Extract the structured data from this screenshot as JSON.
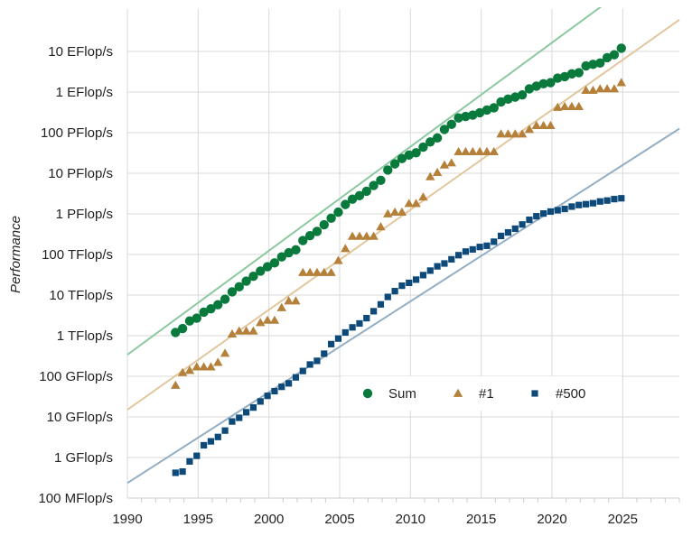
{
  "chart_data": {
    "type": "scatter",
    "title": "",
    "xlabel": "",
    "ylabel": "Performance",
    "y_scale": "log",
    "grid": true,
    "legend_position": "bottom-right",
    "xlim": [
      1990,
      2029
    ],
    "ylim_flops": [
      100000000.0,
      1e+20
    ],
    "x_ticks": [
      {
        "value": 1990,
        "label": "1990"
      },
      {
        "value": 1995,
        "label": "1995"
      },
      {
        "value": 2000,
        "label": "2000"
      },
      {
        "value": 2005,
        "label": "2005"
      },
      {
        "value": 2010,
        "label": "2010"
      },
      {
        "value": 2015,
        "label": "2015"
      },
      {
        "value": 2020,
        "label": "2020"
      },
      {
        "value": 2025,
        "label": "2025"
      }
    ],
    "y_ticks": [
      {
        "value": 1e+19,
        "label": "10 EFlop/s"
      },
      {
        "value": 1e+18,
        "label": "1 EFlop/s"
      },
      {
        "value": 1e+17,
        "label": "100 PFlop/s"
      },
      {
        "value": 1e+16,
        "label": "10 PFlop/s"
      },
      {
        "value": 1000000000000000.0,
        "label": "1 PFlop/s"
      },
      {
        "value": 100000000000000.0,
        "label": "100 TFlop/s"
      },
      {
        "value": 10000000000000.0,
        "label": "10 TFlop/s"
      },
      {
        "value": 1000000000000.0,
        "label": "1 TFlop/s"
      },
      {
        "value": 100000000000.0,
        "label": "100 GFlop/s"
      },
      {
        "value": 10000000000.0,
        "label": "10 GFlop/s"
      },
      {
        "value": 1000000000.0,
        "label": "1 GFlop/s"
      },
      {
        "value": 100000000.0,
        "label": "100 MFlop/s"
      }
    ],
    "series": [
      {
        "name": "Sum",
        "marker": "circle",
        "color": "#0a7a3c",
        "trend_color": "#8cc9a0",
        "points": [
          [
            1993.4,
            1200000000000.0
          ],
          [
            1993.9,
            1500000000000.0
          ],
          [
            1994.4,
            2300000000000.0
          ],
          [
            1994.9,
            2700000000000.0
          ],
          [
            1995.4,
            3800000000000.0
          ],
          [
            1995.9,
            4600000000000.0
          ],
          [
            1996.4,
            5800000000000.0
          ],
          [
            1996.9,
            7900000000000.0
          ],
          [
            1997.4,
            12000000000000.0
          ],
          [
            1997.9,
            16000000000000.0
          ],
          [
            1998.4,
            22000000000000.0
          ],
          [
            1998.9,
            29000000000000.0
          ],
          [
            1999.4,
            39000000000000.0
          ],
          [
            1999.9,
            50000000000000.0
          ],
          [
            2000.4,
            62000000000000.0
          ],
          [
            2000.9,
            87000000000000.0
          ],
          [
            2001.4,
            110000000000000.0
          ],
          [
            2001.9,
            130000000000000.0
          ],
          [
            2002.4,
            220000000000000.0
          ],
          [
            2002.9,
            290000000000000.0
          ],
          [
            2003.4,
            370000000000000.0
          ],
          [
            2003.9,
            540000000000000.0
          ],
          [
            2004.4,
            780000000000000.0
          ],
          [
            2004.9,
            1100000000000000.0
          ],
          [
            2005.4,
            1700000000000000.0
          ],
          [
            2005.9,
            2300000000000000.0
          ],
          [
            2006.4,
            2800000000000000.0
          ],
          [
            2006.9,
            3600000000000000.0
          ],
          [
            2007.4,
            5000000000000000.0
          ],
          [
            2007.9,
            6700000000000000.0
          ],
          [
            2008.4,
            1.2e+16
          ],
          [
            2008.9,
            1.7e+16
          ],
          [
            2009.4,
            2.3e+16
          ],
          [
            2009.9,
            2.8e+16
          ],
          [
            2010.4,
            3.2e+16
          ],
          [
            2010.9,
            4.4e+16
          ],
          [
            2011.4,
            5.9e+16
          ],
          [
            2011.9,
            7.4e+16
          ],
          [
            2012.4,
            1.2e+17
          ],
          [
            2012.9,
            1.6e+17
          ],
          [
            2013.4,
            2.3e+17
          ],
          [
            2013.9,
            2.5e+17
          ],
          [
            2014.4,
            2.7e+17
          ],
          [
            2014.9,
            3.1e+17
          ],
          [
            2015.4,
            3.6e+17
          ],
          [
            2015.9,
            4.1e+17
          ],
          [
            2016.4,
            5.7e+17
          ],
          [
            2016.9,
            6.7e+17
          ],
          [
            2017.4,
            7.5e+17
          ],
          [
            2017.9,
            8.5e+17
          ],
          [
            2018.4,
            1.2e+18
          ],
          [
            2018.9,
            1.4e+18
          ],
          [
            2019.4,
            1.6e+18
          ],
          [
            2019.9,
            1.7e+18
          ],
          [
            2020.4,
            2.2e+18
          ],
          [
            2020.9,
            2.4e+18
          ],
          [
            2021.4,
            2.8e+18
          ],
          [
            2021.9,
            3e+18
          ],
          [
            2022.4,
            4.4e+18
          ],
          [
            2022.9,
            4.8e+18
          ],
          [
            2023.4,
            5.2e+18
          ],
          [
            2023.9,
            7e+18
          ],
          [
            2024.4,
            8.3e+18
          ],
          [
            2024.9,
            1.2e+19
          ]
        ]
      },
      {
        "name": "#1",
        "marker": "triangle",
        "color": "#b5803a",
        "trend_color": "#e2c79e",
        "points": [
          [
            1993.4,
            60000000000.0
          ],
          [
            1993.9,
            124000000000.0
          ],
          [
            1994.4,
            140000000000.0
          ],
          [
            1994.9,
            170000000000.0
          ],
          [
            1995.4,
            170000000000.0
          ],
          [
            1995.9,
            170000000000.0
          ],
          [
            1996.4,
            220000000000.0
          ],
          [
            1996.9,
            370000000000.0
          ],
          [
            1997.4,
            1100000000000.0
          ],
          [
            1997.9,
            1300000000000.0
          ],
          [
            1998.4,
            1300000000000.0
          ],
          [
            1998.9,
            1300000000000.0
          ],
          [
            1999.4,
            2100000000000.0
          ],
          [
            1999.9,
            2400000000000.0
          ],
          [
            2000.4,
            2400000000000.0
          ],
          [
            2000.9,
            4900000000000.0
          ],
          [
            2001.4,
            7200000000000.0
          ],
          [
            2001.9,
            7200000000000.0
          ],
          [
            2002.4,
            36000000000000.0
          ],
          [
            2002.9,
            36000000000000.0
          ],
          [
            2003.4,
            36000000000000.0
          ],
          [
            2003.9,
            36000000000000.0
          ],
          [
            2004.4,
            36000000000000.0
          ],
          [
            2004.9,
            71000000000000.0
          ],
          [
            2005.4,
            140000000000000.0
          ],
          [
            2005.9,
            280000000000000.0
          ],
          [
            2006.4,
            280000000000000.0
          ],
          [
            2006.9,
            280000000000000.0
          ],
          [
            2007.4,
            280000000000000.0
          ],
          [
            2007.9,
            480000000000000.0
          ],
          [
            2008.4,
            1000000000000000.0
          ],
          [
            2008.9,
            1100000000000000.0
          ],
          [
            2009.4,
            1100000000000000.0
          ],
          [
            2009.9,
            1800000000000000.0
          ],
          [
            2010.4,
            1800000000000000.0
          ],
          [
            2010.9,
            2600000000000000.0
          ],
          [
            2011.4,
            8200000000000000.0
          ],
          [
            2011.9,
            1.05e+16
          ],
          [
            2012.4,
            1.6e+16
          ],
          [
            2012.9,
            1.8e+16
          ],
          [
            2013.4,
            3.4e+16
          ],
          [
            2013.9,
            3.4e+16
          ],
          [
            2014.4,
            3.4e+16
          ],
          [
            2014.9,
            3.4e+16
          ],
          [
            2015.4,
            3.4e+16
          ],
          [
            2015.9,
            3.4e+16
          ],
          [
            2016.4,
            9.3e+16
          ],
          [
            2016.9,
            9.3e+16
          ],
          [
            2017.4,
            9.3e+16
          ],
          [
            2017.9,
            9.3e+16
          ],
          [
            2018.4,
            1.2e+17
          ],
          [
            2018.9,
            1.5e+17
          ],
          [
            2019.4,
            1.5e+17
          ],
          [
            2019.9,
            1.5e+17
          ],
          [
            2020.4,
            4.2e+17
          ],
          [
            2020.9,
            4.4e+17
          ],
          [
            2021.4,
            4.4e+17
          ],
          [
            2021.9,
            4.4e+17
          ],
          [
            2022.4,
            1.1e+18
          ],
          [
            2022.9,
            1.1e+18
          ],
          [
            2023.4,
            1.2e+18
          ],
          [
            2023.9,
            1.2e+18
          ],
          [
            2024.4,
            1.2e+18
          ],
          [
            2024.9,
            1.7e+18
          ]
        ]
      },
      {
        "name": "#500",
        "marker": "square",
        "color": "#0d4a7a",
        "trend_color": "#94aec4",
        "points": [
          [
            1993.4,
            420000000.0
          ],
          [
            1993.9,
            450000000.0
          ],
          [
            1994.4,
            800000000.0
          ],
          [
            1994.9,
            1100000000.0
          ],
          [
            1995.4,
            2000000000.0
          ],
          [
            1995.9,
            2500000000.0
          ],
          [
            1996.4,
            3200000000.0
          ],
          [
            1996.9,
            4600000000.0
          ],
          [
            1997.4,
            7700000000.0
          ],
          [
            1997.9,
            9500000000.0
          ],
          [
            1998.4,
            13000000000.0
          ],
          [
            1998.9,
            17000000000.0
          ],
          [
            1999.4,
            24000000000.0
          ],
          [
            1999.9,
            33000000000.0
          ],
          [
            2000.4,
            43000000000.0
          ],
          [
            2000.9,
            55000000000.0
          ],
          [
            2001.4,
            67000000000.0
          ],
          [
            2001.9,
            94000000000.0
          ],
          [
            2002.4,
            135000000000.0
          ],
          [
            2002.9,
            195000000000.0
          ],
          [
            2003.4,
            240000000000.0
          ],
          [
            2003.9,
            360000000000.0
          ],
          [
            2004.4,
            620000000000.0
          ],
          [
            2004.9,
            850000000000.0
          ],
          [
            2005.4,
            1200000000000.0
          ],
          [
            2005.9,
            1600000000000.0
          ],
          [
            2006.4,
            2000000000000.0
          ],
          [
            2006.9,
            2700000000000.0
          ],
          [
            2007.4,
            4000000000000.0
          ],
          [
            2007.9,
            5900000000000.0
          ],
          [
            2008.4,
            9000000000000.0
          ],
          [
            2008.9,
            12500000000000.0
          ],
          [
            2009.4,
            17000000000000.0
          ],
          [
            2009.9,
            20000000000000.0
          ],
          [
            2010.4,
            24000000000000.0
          ],
          [
            2010.9,
            31000000000000.0
          ],
          [
            2011.4,
            40000000000000.0
          ],
          [
            2011.9,
            51000000000000.0
          ],
          [
            2012.4,
            60000000000000.0
          ],
          [
            2012.9,
            76000000000000.0
          ],
          [
            2013.4,
            96000000000000.0
          ],
          [
            2013.9,
            118000000000000.0
          ],
          [
            2014.4,
            133000000000000.0
          ],
          [
            2014.9,
            153000000000000.0
          ],
          [
            2015.4,
            164000000000000.0
          ],
          [
            2015.9,
            206000000000000.0
          ],
          [
            2016.4,
            286000000000000.0
          ],
          [
            2016.9,
            349000000000000.0
          ],
          [
            2017.4,
            432000000000000.0
          ],
          [
            2017.9,
            548000000000000.0
          ],
          [
            2018.4,
            715000000000000.0
          ],
          [
            2018.9,
            874000000000000.0
          ],
          [
            2019.4,
            1020000000000000.0
          ],
          [
            2019.9,
            1140000000000000.0
          ],
          [
            2020.4,
            1230000000000000.0
          ],
          [
            2020.9,
            1320000000000000.0
          ],
          [
            2021.4,
            1510000000000000.0
          ],
          [
            2021.9,
            1650000000000000.0
          ],
          [
            2022.4,
            1730000000000000.0
          ],
          [
            2022.9,
            1830000000000000.0
          ],
          [
            2023.4,
            2020000000000000.0
          ],
          [
            2023.9,
            2130000000000000.0
          ],
          [
            2024.4,
            2310000000000000.0
          ],
          [
            2024.9,
            2420000000000000.0
          ]
        ]
      }
    ],
    "trend_lines": [
      {
        "series": "Sum",
        "from": [
          1990,
          340000000000.0
        ],
        "to": [
          2024.4,
          2.2e+20
        ]
      },
      {
        "series": "#1",
        "from": [
          1990,
          15000000000.0
        ],
        "to": [
          2029,
          6e+19
        ]
      },
      {
        "series": "#500",
        "from": [
          1990,
          235000000.0
        ],
        "to": [
          2029,
          1.25e+17
        ]
      }
    ]
  }
}
